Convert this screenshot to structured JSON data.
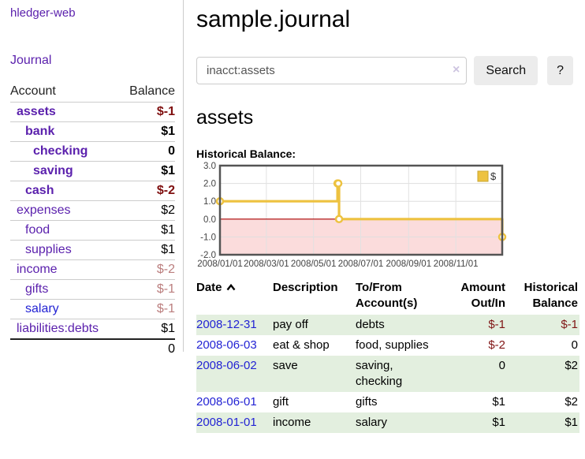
{
  "colors": {
    "link_purple": "#5b21ad",
    "link_blue": "#2323d4",
    "negative_dark": "#7f0f0f",
    "negative_light": "#bb7e7e",
    "stripe_green": "#e3efdf",
    "series_gold": "#edc240",
    "zero_line_red": "#aa0000",
    "negative_region_pink": "#fbdcdc",
    "chart_border_gray": "#545454"
  },
  "brand": {
    "title": "hledger-web"
  },
  "nav": {
    "journal": "Journal"
  },
  "sidebar": {
    "headers": {
      "account": "Account",
      "balance": "Balance"
    },
    "rows": [
      {
        "name": "assets",
        "balance": "$-1"
      },
      {
        "name": "bank",
        "balance": "$1"
      },
      {
        "name": "checking",
        "balance": "0"
      },
      {
        "name": "saving",
        "balance": "$1"
      },
      {
        "name": "cash",
        "balance": "$-2"
      },
      {
        "name": "expenses",
        "balance": "$2"
      },
      {
        "name": "food",
        "balance": "$1"
      },
      {
        "name": "supplies",
        "balance": "$1"
      },
      {
        "name": "income",
        "balance": "$-2"
      },
      {
        "name": "gifts",
        "balance": "$-1"
      },
      {
        "name": "salary",
        "balance": "$-1"
      },
      {
        "name": "liabilities:debts",
        "balance": "$1"
      }
    ],
    "total": "0"
  },
  "header": {
    "title": "sample.journal"
  },
  "search": {
    "value": "inacct:assets",
    "clear_icon": "×",
    "button_label": "Search",
    "help_label": "?"
  },
  "account_page": {
    "heading": "assets",
    "chart_label": "Historical Balance:"
  },
  "chart_data": {
    "type": "line",
    "style": "step",
    "title": "Historical Balance",
    "legend": [
      "$"
    ],
    "legend_position": "top-right",
    "x": [
      "2008-01-01",
      "2008-06-01",
      "2008-06-02",
      "2008-06-03",
      "2008-12-31"
    ],
    "series": [
      {
        "name": "$",
        "values": [
          1,
          2,
          2,
          0,
          -1
        ]
      }
    ],
    "x_domain": [
      "2008-01-01",
      "2008-12-31"
    ],
    "ylim": [
      -2,
      3
    ],
    "yticks": [
      "3.0",
      "2.0",
      "1.0",
      "0.0",
      "-1.0",
      "-2.0"
    ],
    "xticks": [
      "2008/01/01",
      "2008/03/01",
      "2008/05/01",
      "2008/07/01",
      "2008/09/01",
      "2008/11/01"
    ],
    "grid": true,
    "negative_region_shaded": true
  },
  "register": {
    "headers": {
      "date": "Date",
      "description": "Description",
      "tofrom": "To/From Account(s)",
      "amount": "Amount Out/In",
      "balance": "Historical Balance"
    },
    "rows": [
      {
        "date": "2008-12-31",
        "description": "pay off",
        "accounts": "debts",
        "amount": "$-1",
        "balance": "$-1"
      },
      {
        "date": "2008-06-03",
        "description": "eat & shop",
        "accounts": "food, supplies",
        "amount": "$-2",
        "balance": "0"
      },
      {
        "date": "2008-06-02",
        "description": "save",
        "accounts": "saving, checking",
        "amount": "0",
        "balance": "$2"
      },
      {
        "date": "2008-06-01",
        "description": "gift",
        "accounts": "gifts",
        "amount": "$1",
        "balance": "$2"
      },
      {
        "date": "2008-01-01",
        "description": "income",
        "accounts": "salary",
        "amount": "$1",
        "balance": "$1"
      }
    ]
  }
}
